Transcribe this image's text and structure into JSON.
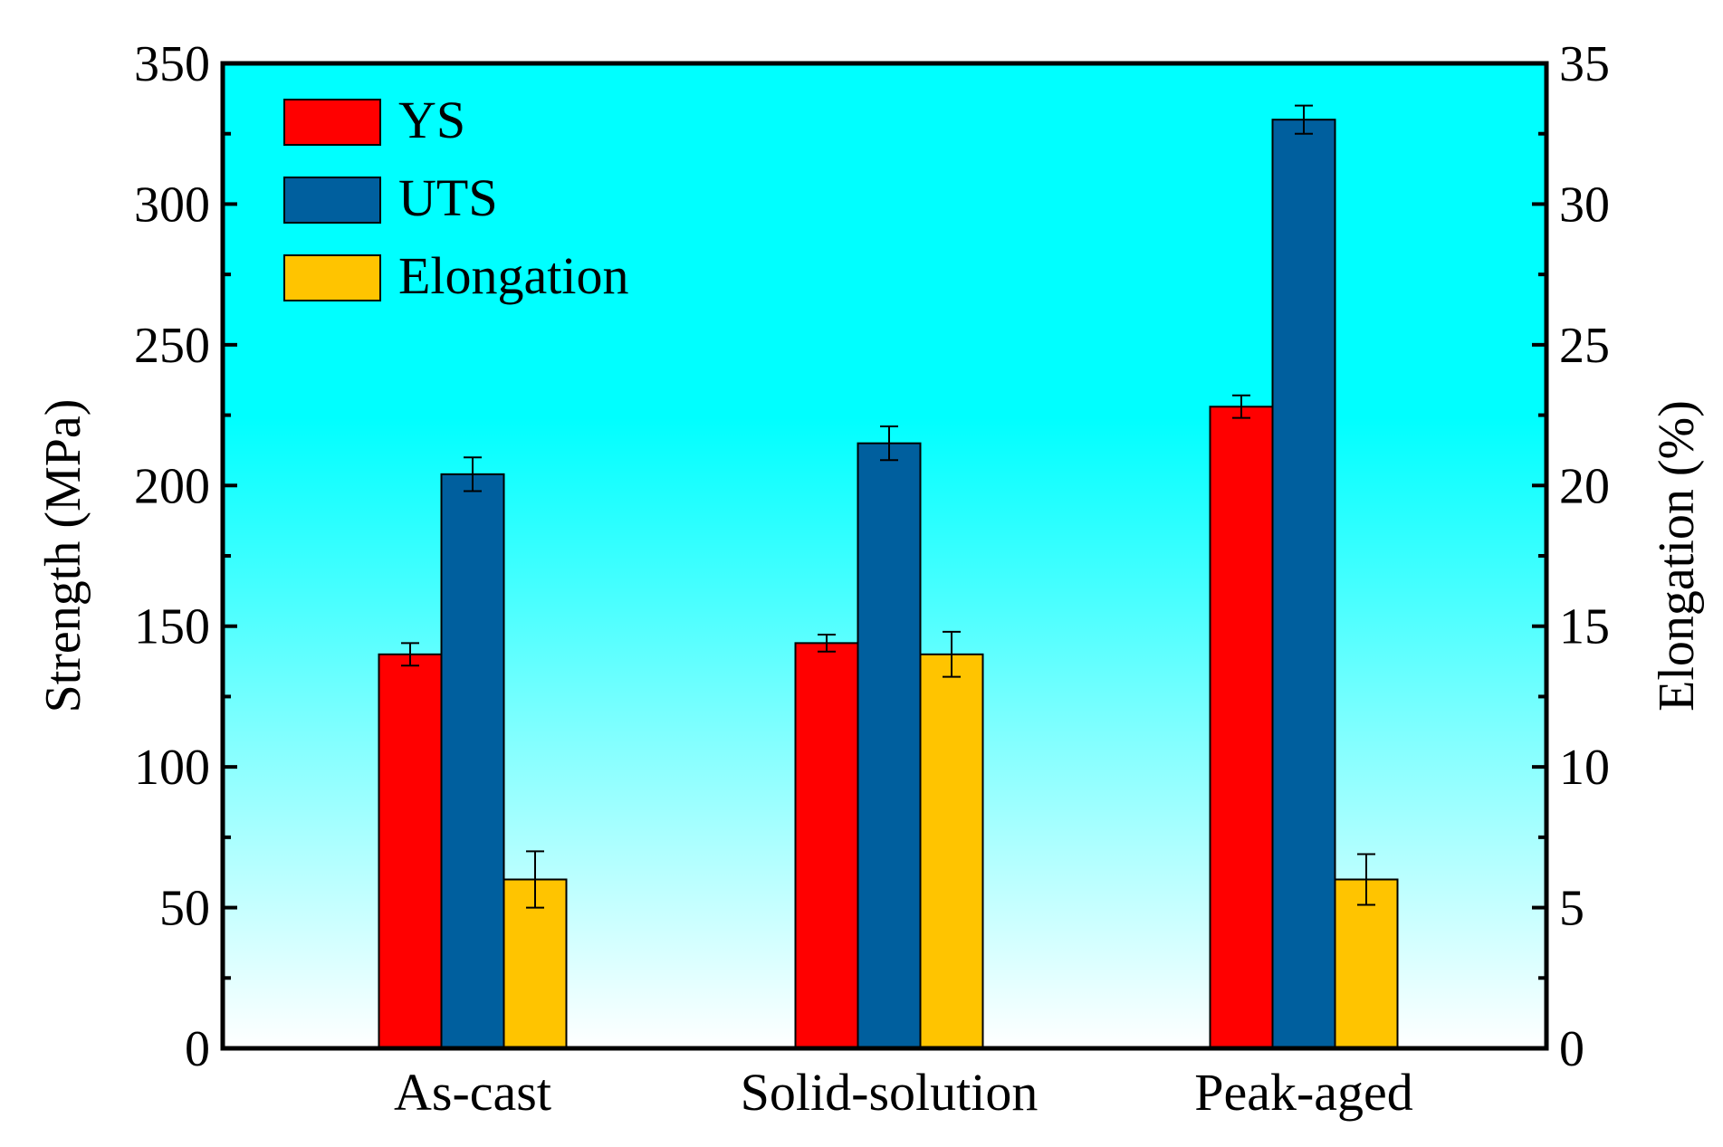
{
  "chart_data": {
    "type": "bar",
    "categories": [
      "As-cast",
      "Solid-solution",
      "Peak-aged"
    ],
    "series": [
      {
        "name": "YS",
        "axis": "left",
        "color": "#ff0000",
        "values": [
          140,
          144,
          228
        ],
        "errors": [
          4,
          3,
          4
        ]
      },
      {
        "name": "UTS",
        "axis": "left",
        "color": "#005f9e",
        "values": [
          204,
          215,
          330
        ],
        "errors": [
          6,
          6,
          5
        ]
      },
      {
        "name": "Elongation",
        "axis": "right",
        "color": "#ffc400",
        "values": [
          6.0,
          14.0,
          6.0
        ],
        "errors": [
          1.0,
          0.8,
          0.9
        ]
      }
    ],
    "ylabel": "Strength (MPa)",
    "ylim": [
      0,
      350
    ],
    "yticks": [
      0,
      50,
      100,
      150,
      200,
      250,
      300,
      350
    ],
    "y2label": "Elongation (%)",
    "y2lim": [
      0,
      35
    ],
    "y2ticks": [
      0,
      5,
      10,
      15,
      20,
      25,
      30,
      35
    ],
    "legend_position": "top-left",
    "background": {
      "top": "#00ffff",
      "bottom": "#ffffff"
    }
  }
}
